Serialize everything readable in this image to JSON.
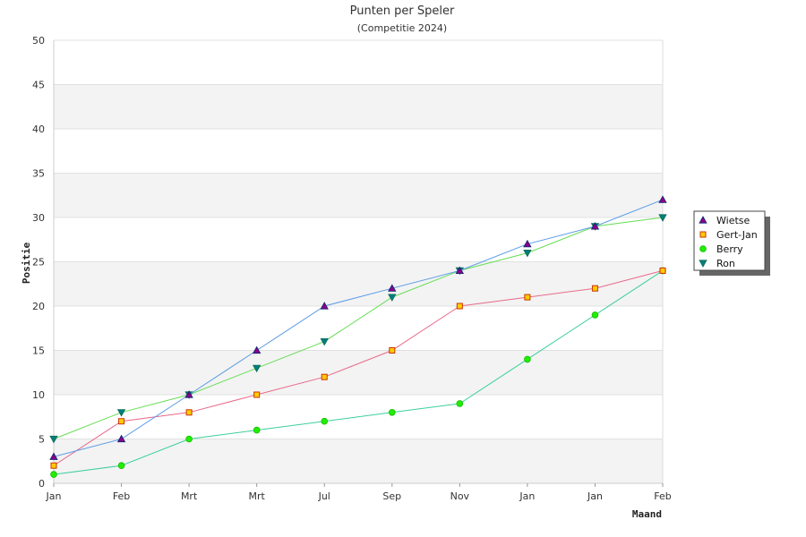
{
  "chart_data": {
    "type": "line",
    "title": "Punten per Speler",
    "subtitle": "(Competitie 2024)",
    "xlabel": "Maand",
    "ylabel": "Positie",
    "categories": [
      "Jan",
      "Feb",
      "Mrt",
      "Mrt",
      "Jul",
      "Sep",
      "Nov",
      "Jan",
      "Jan",
      "Feb"
    ],
    "ylim": [
      0,
      50
    ],
    "yticks": [
      0,
      5,
      10,
      15,
      20,
      25,
      30,
      35,
      40,
      45,
      50
    ],
    "grid": "horizontal bands",
    "legend_position": "right",
    "series": [
      {
        "name": "Wietse",
        "values": [
          3,
          5,
          10,
          15,
          20,
          22,
          24,
          27,
          29,
          32
        ],
        "line_color": "#5a9be6",
        "marker": "triangle-up",
        "marker_color": "#8b008b"
      },
      {
        "name": "Gert-Jan",
        "values": [
          2,
          7,
          8,
          10,
          12,
          15,
          20,
          21,
          22,
          24
        ],
        "line_color": "#e86a8a",
        "marker": "square",
        "marker_color": "#ffcc00"
      },
      {
        "name": "Berry",
        "values": [
          1,
          2,
          5,
          6,
          7,
          8,
          9,
          14,
          19,
          24
        ],
        "line_color": "#3ccf9a",
        "marker": "circle",
        "marker_color": "#22ee00"
      },
      {
        "name": "Ron",
        "values": [
          5,
          8,
          10,
          13,
          16,
          21,
          24,
          26,
          29,
          30
        ],
        "line_color": "#66dd55",
        "marker": "triangle-down",
        "marker_color": "#007f7f"
      }
    ]
  }
}
